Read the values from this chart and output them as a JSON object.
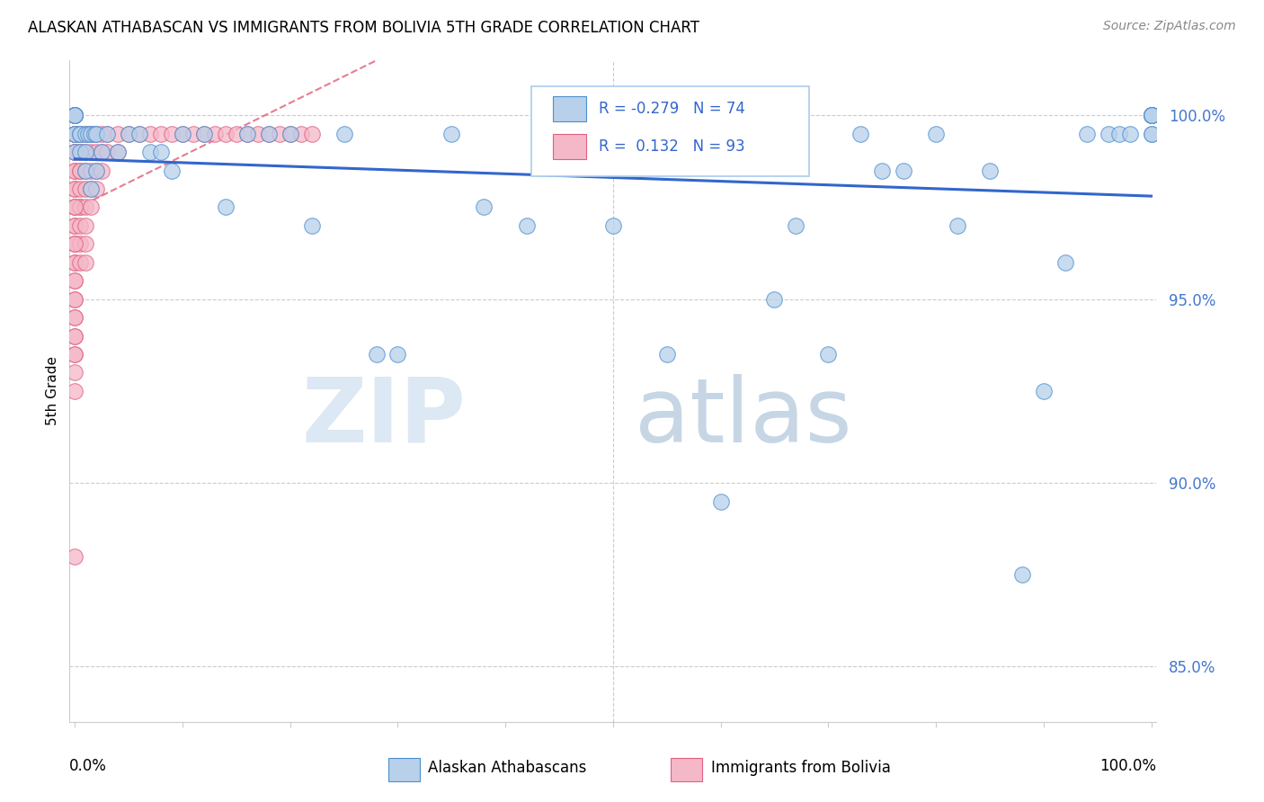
{
  "title": "ALASKAN ATHABASCAN VS IMMIGRANTS FROM BOLIVIA 5TH GRADE CORRELATION CHART",
  "source": "Source: ZipAtlas.com",
  "ylabel": "5th Grade",
  "blue_R": -0.279,
  "blue_N": 74,
  "pink_R": 0.132,
  "pink_N": 93,
  "blue_fill": "#b8d0ea",
  "pink_fill": "#f4b8c8",
  "blue_edge": "#4a90d0",
  "pink_edge": "#e06080",
  "blue_line_color": "#3366cc",
  "pink_line_color": "#dd4466",
  "watermark_zip": "ZIP",
  "watermark_atlas": "atlas",
  "xlim": [
    -0.005,
    1.005
  ],
  "ylim": [
    83.5,
    101.5
  ],
  "yticks": [
    85.0,
    90.0,
    95.0,
    100.0
  ],
  "blue_x": [
    0.0,
    0.0,
    0.0,
    0.0,
    0.0,
    0.0,
    0.0,
    0.005,
    0.005,
    0.005,
    0.01,
    0.01,
    0.01,
    0.012,
    0.015,
    0.015,
    0.018,
    0.02,
    0.02,
    0.025,
    0.03,
    0.04,
    0.05,
    0.06,
    0.07,
    0.08,
    0.09,
    0.1,
    0.12,
    0.14,
    0.16,
    0.18,
    0.2,
    0.22,
    0.25,
    0.28,
    0.3,
    0.35,
    0.38,
    0.42,
    0.45,
    0.48,
    0.5,
    0.52,
    0.55,
    0.58,
    0.6,
    0.62,
    0.65,
    0.67,
    0.7,
    0.73,
    0.75,
    0.77,
    0.8,
    0.82,
    0.85,
    0.88,
    0.9,
    0.92,
    0.94,
    0.96,
    0.97,
    0.98,
    1.0,
    1.0,
    1.0,
    1.0,
    1.0,
    1.0,
    1.0,
    1.0,
    1.0,
    1.0
  ],
  "blue_y": [
    100.0,
    100.0,
    100.0,
    100.0,
    99.5,
    99.5,
    99.0,
    99.5,
    99.5,
    99.0,
    99.5,
    99.0,
    98.5,
    99.5,
    99.5,
    98.0,
    99.5,
    99.5,
    98.5,
    99.0,
    99.5,
    99.0,
    99.5,
    99.5,
    99.0,
    99.0,
    98.5,
    99.5,
    99.5,
    97.5,
    99.5,
    99.5,
    99.5,
    97.0,
    99.5,
    93.5,
    93.5,
    99.5,
    97.5,
    97.0,
    99.5,
    99.5,
    97.0,
    99.5,
    93.5,
    99.5,
    89.5,
    99.5,
    95.0,
    97.0,
    93.5,
    99.5,
    98.5,
    98.5,
    99.5,
    97.0,
    98.5,
    87.5,
    92.5,
    96.0,
    99.5,
    99.5,
    99.5,
    99.5,
    100.0,
    100.0,
    100.0,
    100.0,
    100.0,
    100.0,
    100.0,
    100.0,
    99.5,
    99.5
  ],
  "pink_x": [
    0.0,
    0.0,
    0.0,
    0.0,
    0.0,
    0.0,
    0.0,
    0.0,
    0.0,
    0.0,
    0.0,
    0.0,
    0.0,
    0.0,
    0.0,
    0.0,
    0.0,
    0.0,
    0.0,
    0.0,
    0.0,
    0.0,
    0.0,
    0.0,
    0.0,
    0.0,
    0.0,
    0.0,
    0.0,
    0.0,
    0.0,
    0.0,
    0.0,
    0.0,
    0.0,
    0.005,
    0.005,
    0.005,
    0.005,
    0.005,
    0.005,
    0.005,
    0.005,
    0.005,
    0.005,
    0.005,
    0.005,
    0.01,
    0.01,
    0.01,
    0.01,
    0.01,
    0.01,
    0.01,
    0.01,
    0.015,
    0.015,
    0.015,
    0.015,
    0.015,
    0.02,
    0.02,
    0.02,
    0.02,
    0.025,
    0.025,
    0.025,
    0.03,
    0.03,
    0.04,
    0.04,
    0.05,
    0.06,
    0.07,
    0.08,
    0.09,
    0.1,
    0.11,
    0.12,
    0.13,
    0.14,
    0.15,
    0.16,
    0.17,
    0.18,
    0.19,
    0.2,
    0.21,
    0.22,
    0.0,
    0.0,
    0.0,
    0.0
  ],
  "pink_y": [
    100.0,
    100.0,
    100.0,
    100.0,
    100.0,
    99.5,
    99.5,
    99.5,
    99.5,
    99.0,
    99.0,
    99.0,
    98.5,
    98.5,
    98.0,
    98.0,
    97.5,
    97.5,
    97.0,
    97.0,
    96.5,
    96.5,
    96.0,
    96.0,
    95.5,
    95.0,
    95.0,
    94.5,
    94.5,
    94.0,
    94.0,
    93.5,
    93.5,
    93.0,
    92.5,
    99.5,
    99.5,
    99.0,
    99.0,
    98.5,
    98.5,
    98.0,
    97.5,
    97.5,
    97.0,
    96.5,
    96.0,
    99.5,
    99.0,
    98.5,
    98.0,
    97.5,
    97.0,
    96.5,
    96.0,
    99.5,
    99.0,
    98.5,
    98.0,
    97.5,
    99.5,
    99.0,
    98.5,
    98.0,
    99.5,
    99.0,
    98.5,
    99.5,
    99.0,
    99.5,
    99.0,
    99.5,
    99.5,
    99.5,
    99.5,
    99.5,
    99.5,
    99.5,
    99.5,
    99.5,
    99.5,
    99.5,
    99.5,
    99.5,
    99.5,
    99.5,
    99.5,
    99.5,
    99.5,
    88.0,
    95.5,
    96.5,
    97.5
  ]
}
